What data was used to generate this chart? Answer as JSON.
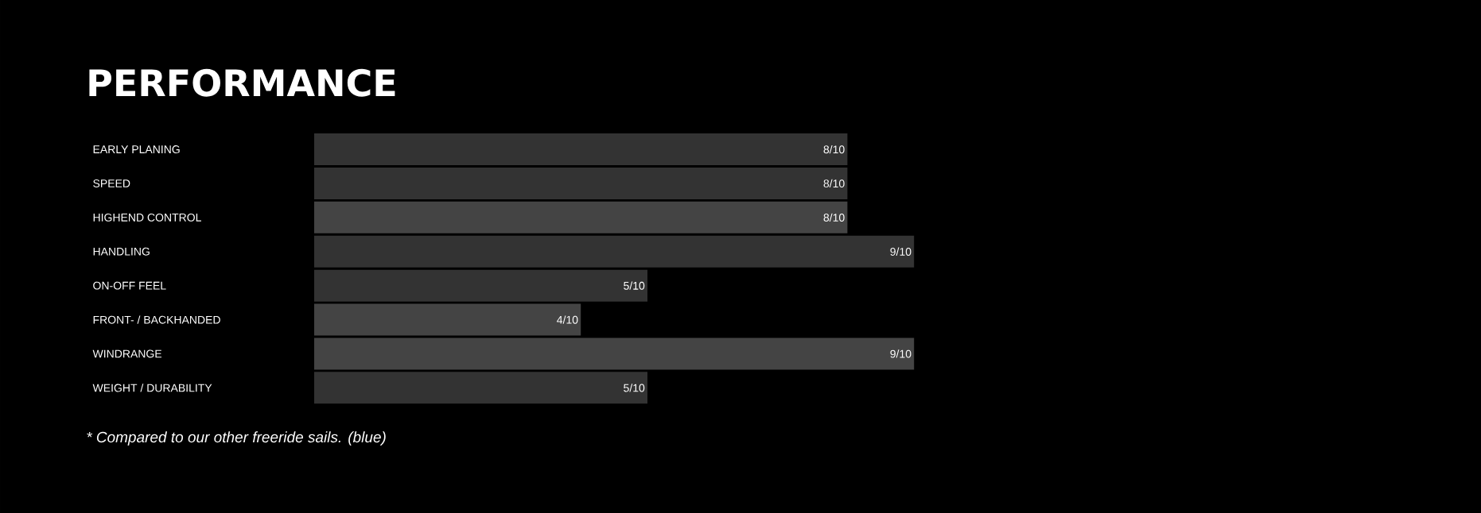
{
  "chart_data": {
    "type": "bar",
    "orientation": "horizontal",
    "title": "PERFORMANCE",
    "categories": [
      "EARLY PLANING",
      "SPEED",
      "HIGHEND CONTROL",
      "HANDLING",
      "ON-OFF FEEL",
      "FRONT- / BACKHANDED",
      "WINDRANGE",
      "WEIGHT / DURABILITY"
    ],
    "values": [
      0.8,
      0.8,
      0.8,
      0.9,
      0.5,
      0.4,
      0.9,
      0.5
    ],
    "value_labels": [
      "8/10",
      "8/10",
      "8/10",
      "9/10",
      "5/10",
      "4/10",
      "9/10",
      "5/10"
    ],
    "colors": [
      "#333333",
      "#333333",
      "#444444",
      "#333333",
      "#333333",
      "#444444",
      "#444444",
      "#333333"
    ],
    "annotations": [
      "* Compared to our other freeride sails. (blue)"
    ]
  }
}
